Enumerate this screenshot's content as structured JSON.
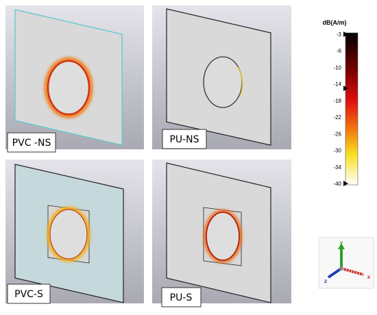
{
  "panels": [
    {
      "label": "PVC -NS"
    },
    {
      "label": "PU-NS"
    },
    {
      "label": "PVC-S"
    },
    {
      "label": "PU-S"
    }
  ],
  "colorbar": {
    "title": "dB(A/m)",
    "ticks": [
      "-3",
      "-6",
      "-10",
      "-14",
      "-18",
      "-22",
      "-26",
      "-30",
      "-34",
      "-40"
    ]
  },
  "axes_widget": {
    "y": "y",
    "z": "z",
    "x": "x"
  }
}
